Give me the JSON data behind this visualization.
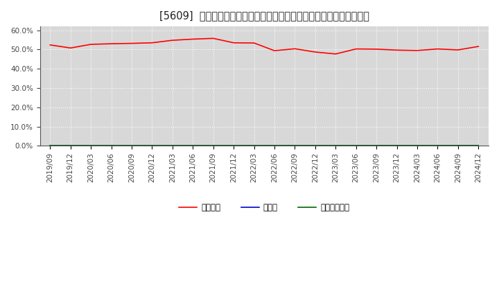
{
  "title": "[5609]  自己資本、のれん、繰延税金資産の総資産に対する比率の推移",
  "x_labels": [
    "2019/09",
    "2019/12",
    "2020/03",
    "2020/06",
    "2020/09",
    "2020/12",
    "2021/03",
    "2021/06",
    "2021/09",
    "2021/12",
    "2022/03",
    "2022/06",
    "2022/09",
    "2022/12",
    "2023/03",
    "2023/06",
    "2023/09",
    "2023/12",
    "2024/03",
    "2024/06",
    "2024/09",
    "2024/12"
  ],
  "equity_ratio": [
    0.524,
    0.508,
    0.527,
    0.53,
    0.532,
    0.535,
    0.548,
    0.554,
    0.558,
    0.535,
    0.534,
    0.494,
    0.504,
    0.487,
    0.477,
    0.503,
    0.502,
    0.497,
    0.495,
    0.503,
    0.498,
    0.516
  ],
  "goodwill_ratio": [
    0,
    0,
    0,
    0,
    0,
    0,
    0,
    0,
    0,
    0,
    0,
    0,
    0,
    0,
    0,
    0,
    0,
    0,
    0,
    0,
    0,
    0
  ],
  "deferred_tax_ratio": [
    0,
    0,
    0,
    0,
    0,
    0,
    0,
    0,
    0,
    0,
    0,
    0,
    0,
    0,
    0,
    0,
    0,
    0,
    0,
    0,
    0,
    0
  ],
  "equity_color": "#ff0000",
  "goodwill_color": "#0000cc",
  "deferred_tax_color": "#006600",
  "bg_color": "#ffffff",
  "plot_bg_color": "#d8d8d8",
  "grid_color": "#ffffff",
  "ylim": [
    0.0,
    0.62
  ],
  "yticks": [
    0.0,
    0.1,
    0.2,
    0.3,
    0.4,
    0.5,
    0.6
  ],
  "legend_labels": [
    "自己資本",
    "のれん",
    "繰延税金資産"
  ],
  "title_fontsize": 10.5,
  "tick_fontsize": 7.5,
  "legend_fontsize": 8.5
}
